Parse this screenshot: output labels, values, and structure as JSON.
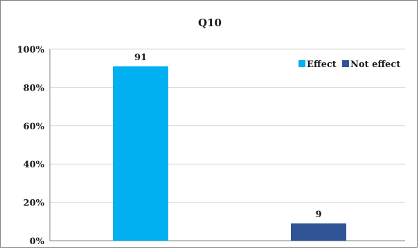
{
  "chart_data": {
    "type": "bar",
    "title": "Q10",
    "categories": [
      "Effect",
      "Not effect"
    ],
    "values": [
      91,
      9
    ],
    "data_labels": [
      "91",
      "9"
    ],
    "colors": [
      "#00b0f0",
      "#2f5597"
    ],
    "ylim": [
      0,
      100
    ],
    "yticks": [
      0,
      20,
      40,
      60,
      80,
      100
    ],
    "ytick_labels": [
      "0%",
      "20%",
      "40%",
      "60%",
      "80%",
      "100%"
    ],
    "xlabel": "",
    "ylabel": "",
    "grid": true,
    "legend": {
      "placement": "top-right",
      "entries": [
        {
          "label": "Effect",
          "color": "#00b0f0"
        },
        {
          "label": "Not effect",
          "color": "#2f5597"
        }
      ]
    }
  }
}
